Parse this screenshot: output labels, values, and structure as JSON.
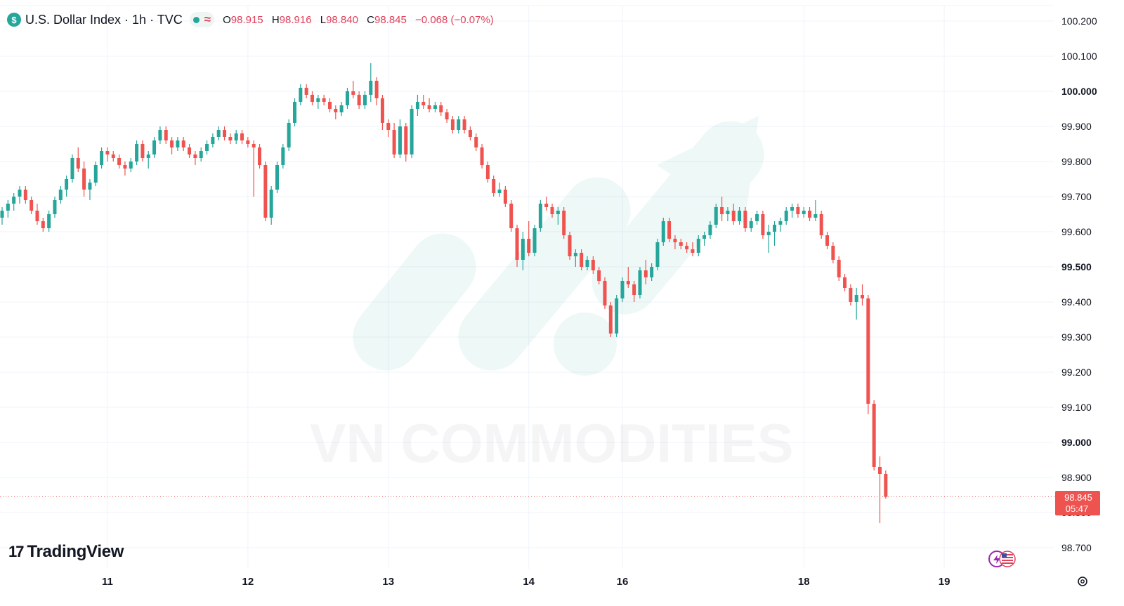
{
  "header": {
    "symbol_badge": "$",
    "title": "U.S. Dollar Index · 1h · TVC",
    "status_icon": "≈",
    "ohlc": {
      "o_label": "O",
      "o_value": "98.915",
      "h_label": "H",
      "h_value": "98.916",
      "l_label": "L",
      "l_value": "98.840",
      "c_label": "C",
      "c_value": "98.845",
      "change": "−0.068 (−0.07%)"
    }
  },
  "price_tag": {
    "price": "98.845",
    "countdown": "05:47"
  },
  "watermark": {
    "text": "VN COMMODITIES"
  },
  "branding": {
    "logo_text": "TradingView"
  },
  "icons": {
    "settings": "gear-icon",
    "currency": "flag-icon"
  },
  "colors": {
    "up": "#26a69a",
    "down": "#ef5350",
    "grid": "#f0f3fa",
    "price_line": "#ef5350"
  },
  "chart_data": {
    "type": "candlestick",
    "title": "U.S. Dollar Index",
    "interval": "1h",
    "exchange": "TVC",
    "y_ticks": [
      {
        "value": 98.7,
        "label": "98.700",
        "bold": false
      },
      {
        "value": 98.8,
        "label": "98.800",
        "bold": false
      },
      {
        "value": 98.9,
        "label": "98.900",
        "bold": false
      },
      {
        "value": 99.0,
        "label": "99.000",
        "bold": true
      },
      {
        "value": 99.1,
        "label": "99.100",
        "bold": false
      },
      {
        "value": 99.2,
        "label": "99.200",
        "bold": false
      },
      {
        "value": 99.3,
        "label": "99.300",
        "bold": false
      },
      {
        "value": 99.4,
        "label": "99.400",
        "bold": false
      },
      {
        "value": 99.5,
        "label": "99.500",
        "bold": true
      },
      {
        "value": 99.6,
        "label": "99.600",
        "bold": false
      },
      {
        "value": 99.7,
        "label": "99.700",
        "bold": false
      },
      {
        "value": 99.8,
        "label": "99.800",
        "bold": false
      },
      {
        "value": 99.9,
        "label": "99.900",
        "bold": false
      },
      {
        "value": 100.0,
        "label": "100.000",
        "bold": true
      },
      {
        "value": 100.1,
        "label": "100.100",
        "bold": false
      },
      {
        "value": 100.2,
        "label": "100.200",
        "bold": false
      }
    ],
    "x_ticks": [
      {
        "index": 18,
        "label": "11"
      },
      {
        "index": 42,
        "label": "12"
      },
      {
        "index": 66,
        "label": "13"
      },
      {
        "index": 90,
        "label": "14"
      },
      {
        "index": 106,
        "label": "16"
      },
      {
        "index": 137,
        "label": "18"
      },
      {
        "index": 161,
        "label": "19"
      }
    ],
    "last_price": 98.845,
    "candles": [
      [
        99.64,
        99.67,
        99.62,
        99.66
      ],
      [
        99.66,
        99.69,
        99.64,
        99.68
      ],
      [
        99.68,
        99.71,
        99.66,
        99.7
      ],
      [
        99.7,
        99.73,
        99.68,
        99.72
      ],
      [
        99.72,
        99.73,
        99.68,
        99.69
      ],
      [
        99.69,
        99.7,
        99.65,
        99.66
      ],
      [
        99.66,
        99.68,
        99.62,
        99.63
      ],
      [
        99.63,
        99.64,
        99.6,
        99.61
      ],
      [
        99.61,
        99.66,
        99.6,
        99.65
      ],
      [
        99.65,
        99.7,
        99.64,
        99.69
      ],
      [
        99.69,
        99.73,
        99.68,
        99.72
      ],
      [
        99.72,
        99.76,
        99.7,
        99.75
      ],
      [
        99.75,
        99.82,
        99.74,
        99.81
      ],
      [
        99.81,
        99.84,
        99.77,
        99.78
      ],
      [
        99.78,
        99.8,
        99.7,
        99.72
      ],
      [
        99.72,
        99.75,
        99.69,
        99.74
      ],
      [
        99.74,
        99.8,
        99.73,
        99.79
      ],
      [
        99.79,
        99.84,
        99.78,
        99.83
      ],
      [
        99.83,
        99.84,
        99.8,
        99.82
      ],
      [
        99.82,
        99.83,
        99.8,
        99.81
      ],
      [
        99.81,
        99.82,
        99.78,
        99.79
      ],
      [
        99.79,
        99.8,
        99.76,
        99.78
      ],
      [
        99.78,
        99.81,
        99.77,
        99.8
      ],
      [
        99.8,
        99.86,
        99.79,
        99.85
      ],
      [
        99.85,
        99.86,
        99.8,
        99.81
      ],
      [
        99.81,
        99.83,
        99.78,
        99.82
      ],
      [
        99.82,
        99.87,
        99.81,
        99.86
      ],
      [
        99.86,
        99.9,
        99.85,
        99.89
      ],
      [
        99.89,
        99.9,
        99.85,
        99.86
      ],
      [
        99.86,
        99.87,
        99.82,
        99.84
      ],
      [
        99.84,
        99.87,
        99.83,
        99.86
      ],
      [
        99.86,
        99.87,
        99.83,
        99.84
      ],
      [
        99.84,
        99.85,
        99.81,
        99.82
      ],
      [
        99.82,
        99.83,
        99.79,
        99.81
      ],
      [
        99.81,
        99.84,
        99.8,
        99.83
      ],
      [
        99.83,
        99.86,
        99.82,
        99.85
      ],
      [
        99.85,
        99.88,
        99.84,
        99.87
      ],
      [
        99.87,
        99.9,
        99.86,
        99.89
      ],
      [
        99.89,
        99.9,
        99.86,
        99.87
      ],
      [
        99.87,
        99.88,
        99.85,
        99.86
      ],
      [
        99.86,
        99.89,
        99.85,
        99.88
      ],
      [
        99.88,
        99.89,
        99.85,
        99.86
      ],
      [
        99.86,
        99.87,
        99.84,
        99.85
      ],
      [
        99.85,
        99.86,
        99.7,
        99.84
      ],
      [
        99.84,
        99.85,
        99.78,
        99.79
      ],
      [
        99.79,
        99.8,
        99.63,
        99.64
      ],
      [
        99.64,
        99.73,
        99.62,
        99.72
      ],
      [
        99.72,
        99.8,
        99.71,
        99.79
      ],
      [
        99.79,
        99.85,
        99.78,
        99.84
      ],
      [
        99.84,
        99.92,
        99.83,
        99.91
      ],
      [
        99.91,
        99.98,
        99.9,
        99.97
      ],
      [
        99.97,
        100.02,
        99.96,
        100.01
      ],
      [
        100.01,
        100.02,
        99.98,
        99.99
      ],
      [
        99.99,
        100.0,
        99.96,
        99.97
      ],
      [
        99.97,
        99.99,
        99.95,
        99.98
      ],
      [
        99.98,
        99.99,
        99.96,
        99.97
      ],
      [
        99.97,
        99.98,
        99.94,
        99.95
      ],
      [
        99.95,
        99.96,
        99.92,
        99.94
      ],
      [
        99.94,
        99.97,
        99.93,
        99.96
      ],
      [
        99.96,
        100.01,
        99.95,
        100.0
      ],
      [
        100.0,
        100.03,
        99.98,
        99.99
      ],
      [
        99.99,
        100.0,
        99.95,
        99.96
      ],
      [
        99.96,
        100.0,
        99.95,
        99.99
      ],
      [
        99.99,
        100.08,
        99.97,
        100.03
      ],
      [
        100.03,
        100.04,
        99.96,
        99.98
      ],
      [
        99.98,
        99.99,
        99.89,
        99.91
      ],
      [
        99.91,
        99.92,
        99.87,
        99.89
      ],
      [
        99.89,
        99.91,
        99.81,
        99.82
      ],
      [
        99.82,
        99.92,
        99.81,
        99.9
      ],
      [
        99.9,
        99.91,
        99.8,
        99.82
      ],
      [
        99.82,
        99.96,
        99.81,
        99.95
      ],
      [
        99.95,
        99.99,
        99.93,
        99.97
      ],
      [
        99.97,
        99.99,
        99.95,
        99.96
      ],
      [
        99.96,
        99.98,
        99.94,
        99.95
      ],
      [
        99.95,
        99.97,
        99.94,
        99.96
      ],
      [
        99.96,
        99.97,
        99.93,
        99.94
      ],
      [
        99.94,
        99.95,
        99.91,
        99.92
      ],
      [
        99.92,
        99.93,
        99.88,
        99.89
      ],
      [
        99.89,
        99.93,
        99.88,
        99.92
      ],
      [
        99.92,
        99.93,
        99.88,
        99.89
      ],
      [
        99.89,
        99.9,
        99.86,
        99.87
      ],
      [
        99.87,
        99.88,
        99.83,
        99.84
      ],
      [
        99.84,
        99.85,
        99.78,
        99.79
      ],
      [
        99.79,
        99.8,
        99.74,
        99.75
      ],
      [
        99.75,
        99.76,
        99.7,
        99.71
      ],
      [
        99.71,
        99.74,
        99.7,
        99.72
      ],
      [
        99.72,
        99.73,
        99.67,
        99.68
      ],
      [
        99.68,
        99.69,
        99.6,
        99.61
      ],
      [
        99.61,
        99.62,
        99.5,
        99.52
      ],
      [
        99.52,
        99.6,
        99.49,
        99.58
      ],
      [
        99.58,
        99.63,
        99.53,
        99.54
      ],
      [
        99.54,
        99.62,
        99.53,
        99.61
      ],
      [
        99.61,
        99.69,
        99.6,
        99.68
      ],
      [
        99.68,
        99.7,
        99.66,
        99.67
      ],
      [
        99.67,
        99.68,
        99.64,
        99.65
      ],
      [
        99.65,
        99.67,
        99.62,
        99.66
      ],
      [
        99.66,
        99.67,
        99.58,
        99.59
      ],
      [
        99.59,
        99.6,
        99.52,
        99.53
      ],
      [
        99.53,
        99.55,
        99.5,
        99.54
      ],
      [
        99.54,
        99.55,
        99.49,
        99.5
      ],
      [
        99.5,
        99.53,
        99.49,
        99.52
      ],
      [
        99.52,
        99.53,
        99.48,
        99.49
      ],
      [
        99.49,
        99.5,
        99.45,
        99.46
      ],
      [
        99.46,
        99.47,
        99.38,
        99.39
      ],
      [
        99.39,
        99.4,
        99.3,
        99.31
      ],
      [
        99.31,
        99.42,
        99.3,
        99.41
      ],
      [
        99.41,
        99.47,
        99.4,
        99.46
      ],
      [
        99.46,
        99.5,
        99.44,
        99.45
      ],
      [
        99.45,
        99.46,
        99.4,
        99.42
      ],
      [
        99.42,
        99.5,
        99.41,
        99.49
      ],
      [
        99.49,
        99.52,
        99.45,
        99.47
      ],
      [
        99.47,
        99.51,
        99.46,
        99.5
      ],
      [
        99.5,
        99.58,
        99.49,
        99.57
      ],
      [
        99.57,
        99.64,
        99.56,
        99.63
      ],
      [
        99.63,
        99.64,
        99.57,
        99.58
      ],
      [
        99.58,
        99.59,
        99.55,
        99.57
      ],
      [
        99.57,
        99.58,
        99.55,
        99.56
      ],
      [
        99.56,
        99.57,
        99.54,
        99.55
      ],
      [
        99.55,
        99.57,
        99.53,
        99.54
      ],
      [
        99.54,
        99.59,
        99.53,
        99.58
      ],
      [
        99.58,
        99.6,
        99.56,
        99.59
      ],
      [
        99.59,
        99.63,
        99.58,
        99.62
      ],
      [
        99.62,
        99.68,
        99.61,
        99.67
      ],
      [
        99.67,
        99.7,
        99.63,
        99.65
      ],
      [
        99.65,
        99.67,
        99.63,
        99.66
      ],
      [
        99.66,
        99.68,
        99.62,
        99.63
      ],
      [
        99.63,
        99.67,
        99.62,
        99.66
      ],
      [
        99.66,
        99.67,
        99.6,
        99.61
      ],
      [
        99.61,
        99.64,
        99.6,
        99.63
      ],
      [
        99.63,
        99.66,
        99.62,
        99.65
      ],
      [
        99.65,
        99.66,
        99.58,
        99.59
      ],
      [
        99.59,
        99.62,
        99.54,
        99.6
      ],
      [
        99.6,
        99.63,
        99.56,
        99.62
      ],
      [
        99.62,
        99.64,
        99.6,
        99.63
      ],
      [
        99.63,
        99.67,
        99.62,
        99.66
      ],
      [
        99.66,
        99.68,
        99.64,
        99.67
      ],
      [
        99.67,
        99.68,
        99.64,
        99.65
      ],
      [
        99.65,
        99.67,
        99.64,
        99.66
      ],
      [
        99.66,
        99.67,
        99.63,
        99.64
      ],
      [
        99.64,
        99.69,
        99.63,
        99.65
      ],
      [
        99.65,
        99.66,
        99.58,
        99.59
      ],
      [
        99.59,
        99.6,
        99.55,
        99.56
      ],
      [
        99.56,
        99.57,
        99.51,
        99.52
      ],
      [
        99.52,
        99.53,
        99.46,
        99.47
      ],
      [
        99.47,
        99.48,
        99.43,
        99.44
      ],
      [
        99.44,
        99.45,
        99.39,
        99.4
      ],
      [
        99.4,
        99.44,
        99.35,
        99.42
      ],
      [
        99.42,
        99.45,
        99.39,
        99.41
      ],
      [
        99.41,
        99.42,
        99.08,
        99.11
      ],
      [
        99.11,
        99.12,
        98.92,
        98.93
      ],
      [
        98.93,
        98.96,
        98.77,
        98.91
      ],
      [
        98.91,
        98.92,
        98.84,
        98.845
      ]
    ]
  }
}
